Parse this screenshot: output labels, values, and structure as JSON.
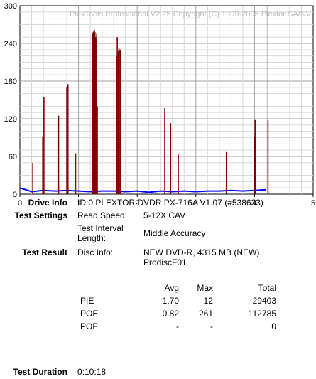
{
  "chart_data": {
    "type": "bar",
    "title": "PlexTools Professional V2.25 Copyright (C) 1999-2005 Plextor SA/NV",
    "xlabel": "",
    "ylabel": "",
    "xlim": [
      0,
      5
    ],
    "ylim": [
      0,
      300
    ],
    "x_ticks": [
      "0",
      "1",
      "2",
      "3",
      "4",
      "5"
    ],
    "y_ticks": [
      "0",
      "60",
      "120",
      "180",
      "240",
      "300"
    ],
    "grid": true,
    "series": [
      {
        "color": "#800000",
        "x": [
          0.22,
          0.39,
          0.41,
          0.65,
          0.66,
          0.8,
          0.82,
          0.95,
          1.24,
          1.25,
          1.26,
          1.27,
          1.28,
          1.29,
          1.3,
          1.31,
          1.32,
          1.65,
          1.66,
          1.68,
          1.69,
          1.71,
          2.47,
          2.57,
          2.7,
          3.52,
          4.0,
          4.01,
          4.23
        ],
        "values": [
          50,
          92,
          155,
          120,
          125,
          170,
          175,
          65,
          255,
          258,
          260,
          262,
          258,
          250,
          245,
          255,
          140,
          220,
          250,
          228,
          232,
          230,
          137,
          113,
          63,
          67,
          92,
          118,
          118
        ]
      },
      {
        "color": "#0000ff",
        "x": [
          0.0,
          0.2,
          0.4,
          0.6,
          0.8,
          1.0,
          1.2,
          1.4,
          1.6,
          1.8,
          2.0,
          2.2,
          2.4,
          2.6,
          2.8,
          3.0,
          3.2,
          3.4,
          3.6,
          3.8,
          4.0,
          4.2
        ],
        "values": [
          10,
          4,
          6,
          5,
          6,
          5,
          4,
          5,
          5,
          4,
          5,
          3,
          5,
          4,
          5,
          4,
          5,
          5,
          6,
          5,
          6,
          7
        ]
      },
      {
        "color": "#000000",
        "x": [
          4.23
        ],
        "values": [
          300
        ]
      }
    ]
  },
  "drive_info": {
    "label": "Drive Info",
    "value": "ID:0 PLEXTOR DVDR PX-716A V1.07 (#538633)"
  },
  "test_settings": {
    "label": "Test Settings",
    "read_speed_label": "Read Speed:",
    "read_speed_value": "5-12X CAV",
    "interval_label_1": "Test Interval",
    "interval_label_2": "Length:",
    "interval_value": "Middle Accuracy"
  },
  "test_result": {
    "label": "Test Result",
    "disc_info_label": "Disc Info:",
    "disc_info_line1": "NEW DVD-R, 4315 MB (NEW)",
    "disc_info_line2": "ProdiscF01"
  },
  "results_table": {
    "headers": {
      "avg": "Avg",
      "max": "Max",
      "total": "Total"
    },
    "rows": [
      {
        "name": "PIE",
        "avg": "1.70",
        "max": "12",
        "total": "29403"
      },
      {
        "name": "POE",
        "avg": "0.82",
        "max": "261",
        "total": "112785"
      },
      {
        "name": "POF",
        "avg": "-",
        "max": "-",
        "total": "0"
      }
    ]
  },
  "test_duration": {
    "label": "Test Duration",
    "value": "0:10:18"
  }
}
